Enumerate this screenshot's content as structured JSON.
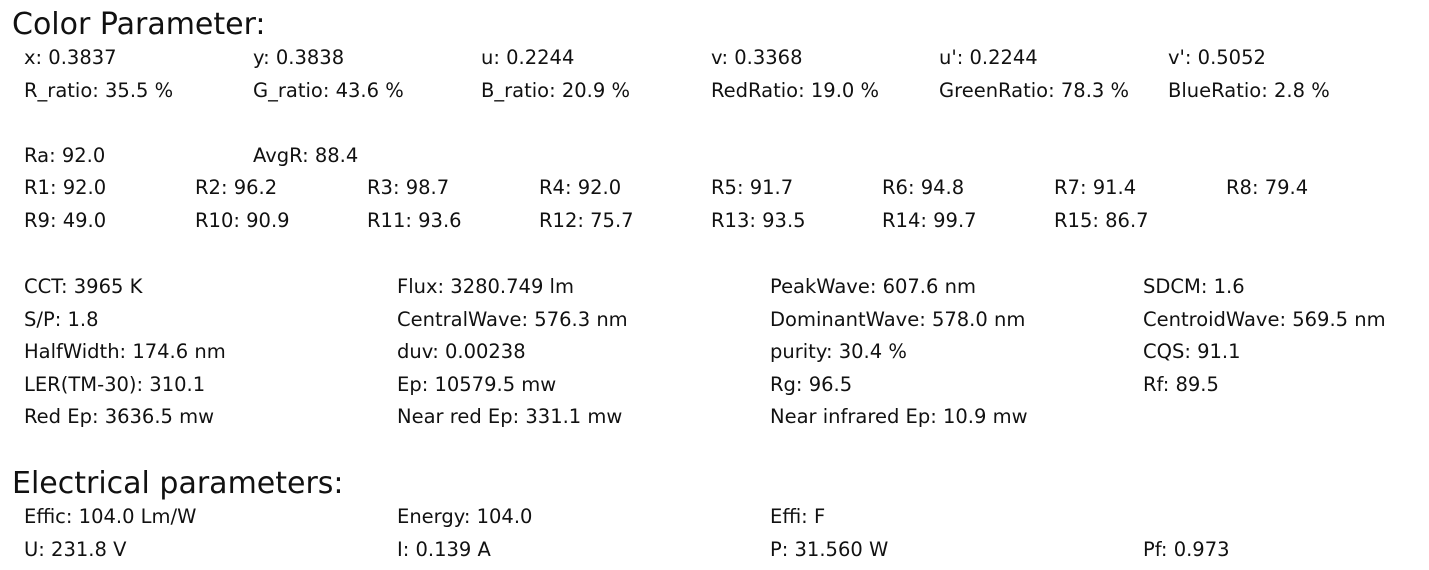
{
  "color_parameter": {
    "title": "Color Parameter:",
    "chromaticity": [
      [
        "x: 0.3837",
        "y: 0.3838",
        "u: 0.2244",
        "v: 0.3368",
        "u': 0.2244",
        "v': 0.5052"
      ],
      [
        "R_ratio: 35.5 %",
        "G_ratio: 43.6 %",
        "B_ratio: 20.9 %",
        "RedRatio: 19.0 %",
        "GreenRatio: 78.3 %",
        "BlueRatio: 2.8 %"
      ]
    ],
    "rendering_summary": [
      [
        "Ra: 92.0",
        "AvgR: 88.4"
      ]
    ],
    "rendering_indices": [
      [
        "R1: 92.0",
        "R2: 96.2",
        "R3: 98.7",
        "R4: 92.0",
        "R5: 91.7",
        "R6: 94.8",
        "R7: 91.4",
        "R8: 79.4"
      ],
      [
        "R9: 49.0",
        "R10: 90.9",
        "R11: 93.6",
        "R12: 75.7",
        "R13: 93.5",
        "R14: 99.7",
        "R15: 86.7"
      ]
    ],
    "photometric": [
      [
        "CCT: 3965 K",
        "Flux: 3280.749 lm",
        "PeakWave: 607.6 nm",
        "SDCM: 1.6"
      ],
      [
        "S/P: 1.8",
        "CentralWave: 576.3 nm",
        "DominantWave: 578.0 nm",
        "CentroidWave: 569.5 nm"
      ],
      [
        "HalfWidth: 174.6 nm",
        "duv: 0.00238",
        "purity: 30.4 %",
        "CQS: 91.1"
      ],
      [
        "LER(TM-30): 310.1",
        "Ep: 10579.5 mw",
        "Rg: 96.5",
        "Rf: 89.5"
      ],
      [
        "Red Ep: 3636.5 mw",
        "Near red Ep: 331.1 mw",
        "Near infrared Ep: 10.9 mw"
      ]
    ]
  },
  "electrical_parameters": {
    "title": "Electrical parameters:",
    "rows": [
      [
        "Effic: 104.0 Lm/W",
        "Energy: 104.0",
        "Effi: F"
      ],
      [
        "U: 231.8 V",
        "I: 0.139 A",
        "P: 31.560 W",
        "Pf: 0.973"
      ]
    ]
  }
}
